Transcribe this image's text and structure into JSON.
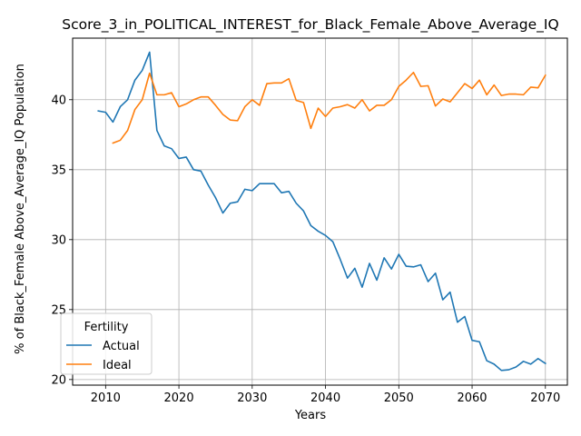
{
  "chart_data": {
    "type": "line",
    "title": "Score_3_in_POLITICAL_INTEREST_for_Black_Female_Above_Average_IQ",
    "xlabel": "Years",
    "ylabel": "% of Black_Female Above_Average_IQ Population",
    "xlim": [
      2005.5,
      2073
    ],
    "ylim": [
      19.6,
      44.4
    ],
    "xticks": [
      2010,
      2020,
      2030,
      2040,
      2050,
      2060,
      2070
    ],
    "yticks": [
      20,
      25,
      30,
      35,
      40
    ],
    "grid": true,
    "legend": {
      "title": "Fertility",
      "placement": "lower-left"
    },
    "series": [
      {
        "name": "Actual",
        "color": "#1f77b4",
        "x": [
          2009,
          2010,
          2011,
          2012,
          2013,
          2014,
          2015,
          2016,
          2017,
          2018,
          2019,
          2020,
          2021,
          2022,
          2023,
          2024,
          2025,
          2026,
          2027,
          2028,
          2029,
          2030,
          2031,
          2032,
          2033,
          2034,
          2035,
          2036,
          2037,
          2038,
          2039,
          2040,
          2041,
          2042,
          2043,
          2044,
          2045,
          2046,
          2047,
          2048,
          2049,
          2050,
          2051,
          2052,
          2053,
          2054,
          2055,
          2056,
          2057,
          2058,
          2059,
          2060,
          2061,
          2062,
          2063,
          2064,
          2065,
          2066,
          2067,
          2068,
          2069,
          2070
        ],
        "y": [
          39.2,
          39.1,
          38.4,
          39.5,
          40.0,
          41.4,
          42.1,
          43.4,
          37.8,
          36.7,
          36.5,
          35.8,
          35.9,
          35.0,
          34.9,
          33.9,
          33.0,
          31.9,
          32.6,
          32.7,
          33.6,
          33.5,
          34.0,
          34.0,
          34.0,
          33.35,
          33.45,
          32.6,
          32.05,
          31.0,
          30.6,
          30.3,
          29.85,
          28.6,
          27.25,
          27.95,
          26.6,
          28.3,
          27.1,
          28.7,
          27.9,
          28.95,
          28.1,
          28.05,
          28.2,
          27.0,
          27.6,
          25.7,
          26.25,
          24.1,
          24.5,
          22.8,
          22.7,
          21.35,
          21.1,
          20.65,
          20.7,
          20.9,
          21.3,
          21.1,
          21.5,
          21.15
        ]
      },
      {
        "name": "Ideal",
        "color": "#ff7f0e",
        "x": [
          2011,
          2012,
          2013,
          2014,
          2015,
          2016,
          2017,
          2018,
          2019,
          2020,
          2021,
          2022,
          2023,
          2024,
          2025,
          2026,
          2027,
          2028,
          2029,
          2030,
          2031,
          2032,
          2033,
          2034,
          2035,
          2036,
          2037,
          2038,
          2039,
          2040,
          2041,
          2042,
          2043,
          2044,
          2045,
          2046,
          2047,
          2048,
          2049,
          2050,
          2051,
          2052,
          2053,
          2054,
          2055,
          2056,
          2057,
          2058,
          2059,
          2060,
          2061,
          2062,
          2063,
          2064,
          2065,
          2066,
          2067,
          2068,
          2069,
          2070
        ],
        "y": [
          36.9,
          37.1,
          37.8,
          39.3,
          40.0,
          41.9,
          40.35,
          40.35,
          40.5,
          39.5,
          39.7,
          40.0,
          40.2,
          40.2,
          39.6,
          38.95,
          38.55,
          38.5,
          39.5,
          40.0,
          39.6,
          41.15,
          41.2,
          41.2,
          41.5,
          39.95,
          39.8,
          37.95,
          39.4,
          38.8,
          39.4,
          39.5,
          39.65,
          39.4,
          40.0,
          39.2,
          39.6,
          39.6,
          40.0,
          40.95,
          41.4,
          41.95,
          40.95,
          41.0,
          39.55,
          40.05,
          39.85,
          40.5,
          41.15,
          40.8,
          41.4,
          40.35,
          41.05,
          40.3,
          40.4,
          40.4,
          40.35,
          40.9,
          40.85,
          41.75
        ]
      }
    ]
  }
}
